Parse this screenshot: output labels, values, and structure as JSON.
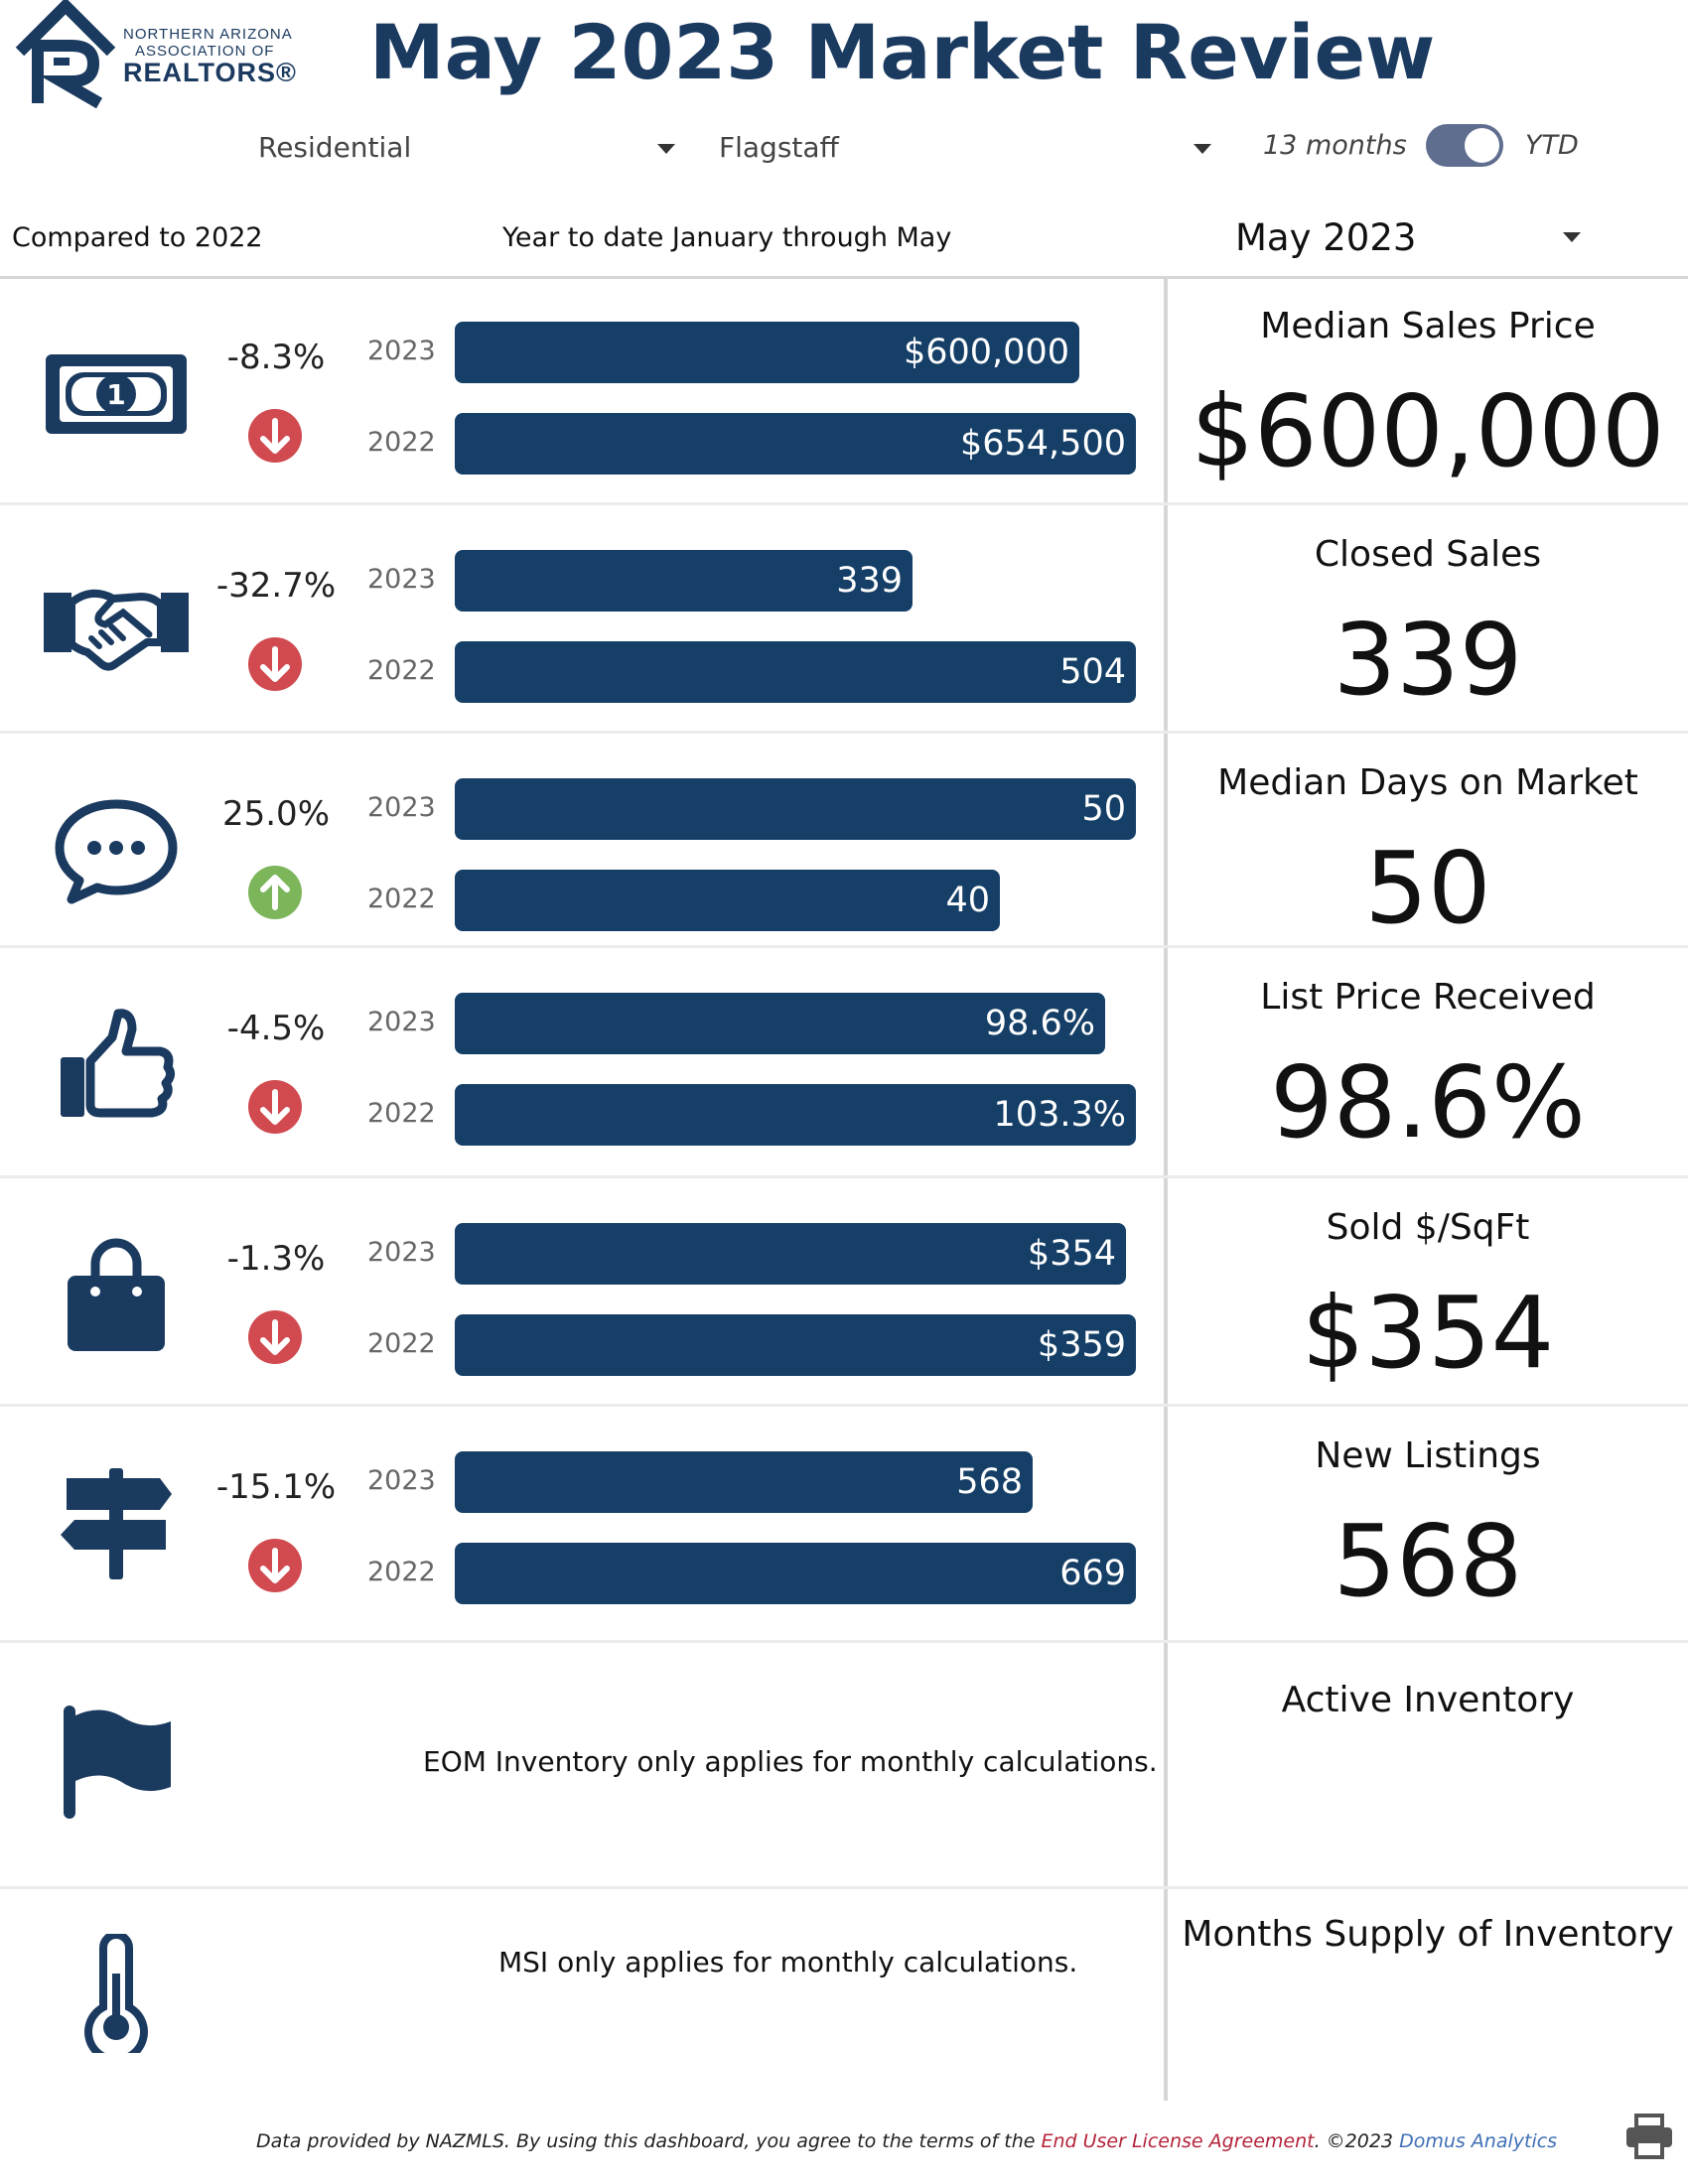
{
  "header": {
    "logo": {
      "line1": "NORTHERN ARIZONA",
      "line2": "ASSOCIATION OF",
      "line3": "REALTORS®"
    },
    "title": "May 2023 Market Review"
  },
  "filters": {
    "property_type": "Residential",
    "area": "Flagstaff",
    "toggle_left": "13 months",
    "toggle_right": "YTD",
    "toggle_state": "YTD"
  },
  "subheader": {
    "compared": "Compared to 2022",
    "range": "Year to date January through May",
    "month": "May 2023"
  },
  "metrics": [
    {
      "icon": "dollar-bill-icon",
      "change": "-8.3%",
      "direction": "down",
      "bars": [
        {
          "year": "2023",
          "label": "$600,000",
          "value": 600000
        },
        {
          "year": "2022",
          "label": "$654,500",
          "value": 654500
        }
      ],
      "kpi_label": "Median Sales Price",
      "kpi_value": "$600,000"
    },
    {
      "icon": "handshake-icon",
      "change": "-32.7%",
      "direction": "down",
      "bars": [
        {
          "year": "2023",
          "label": "339",
          "value": 339
        },
        {
          "year": "2022",
          "label": "504",
          "value": 504
        }
      ],
      "kpi_label": "Closed Sales",
      "kpi_value": "339"
    },
    {
      "icon": "chat-bubble-icon",
      "change": "25.0%",
      "direction": "up",
      "bars": [
        {
          "year": "2023",
          "label": "50",
          "value": 50
        },
        {
          "year": "2022",
          "label": "40",
          "value": 40
        }
      ],
      "kpi_label": "Median Days on Market",
      "kpi_value": "50"
    },
    {
      "icon": "thumbs-up-icon",
      "change": "-4.5%",
      "direction": "down",
      "bars": [
        {
          "year": "2023",
          "label": "98.6%",
          "value": 98.6
        },
        {
          "year": "2022",
          "label": "103.3%",
          "value": 103.3
        }
      ],
      "kpi_label": "List Price Received",
      "kpi_value": "98.6%"
    },
    {
      "icon": "shopping-bag-icon",
      "change": "-1.3%",
      "direction": "down",
      "bars": [
        {
          "year": "2023",
          "label": "$354",
          "value": 354
        },
        {
          "year": "2022",
          "label": "$359",
          "value": 359
        }
      ],
      "kpi_label": "Sold $/SqFt",
      "kpi_value": "$354"
    },
    {
      "icon": "signpost-icon",
      "change": "-15.1%",
      "direction": "down",
      "bars": [
        {
          "year": "2023",
          "label": "568",
          "value": 568
        },
        {
          "year": "2022",
          "label": "669",
          "value": 669
        }
      ],
      "kpi_label": "New Listings",
      "kpi_value": "568"
    }
  ],
  "inventory": {
    "icon": "flag-icon",
    "note": "EOM Inventory only applies for monthly calculations.",
    "kpi_label": "Active Inventory"
  },
  "msi": {
    "icon": "thermometer-icon",
    "note": "MSI only applies for monthly calculations.",
    "kpi_label": "Months Supply of Inventory"
  },
  "footer": {
    "text": "Data provided by NAZMLS.  By using this dashboard, you agree to the terms of the ",
    "eula": "End User License Agreement",
    "mid": ".  ©2023 ",
    "domus": "Domus Analytics"
  },
  "colors": {
    "navy": "#1b3a5f",
    "bar": "#153f67",
    "down": "#d04a4f",
    "up": "#7cb55a",
    "toggle": "#5f6d8e"
  }
}
